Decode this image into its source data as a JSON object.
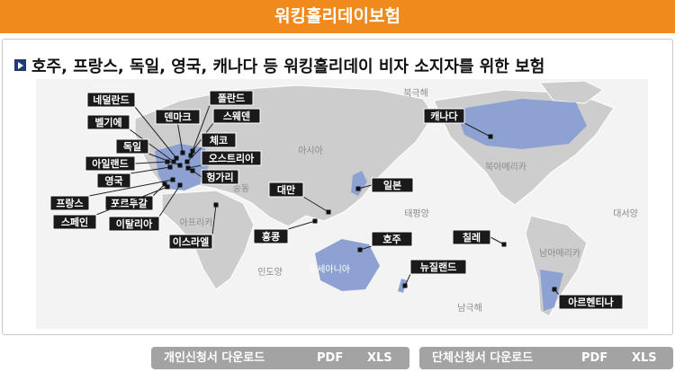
{
  "header": {
    "title": "워킹홀리데이보험"
  },
  "subtitle": "호주, 프랑스, 독일, 영국, 캐나다 등 워킹홀리데이 비자 소지자를 위한 보험",
  "map": {
    "countries": [
      "네덜란드",
      "폴란드",
      "덴마크",
      "스웨덴",
      "벨기에",
      "체코",
      "독일",
      "오스트리아",
      "아일랜드",
      "헝가리",
      "영국",
      "프랑스",
      "포르투갈",
      "스페인",
      "이탈리아",
      "이스라엘",
      "대만",
      "일본",
      "홍콩",
      "호주",
      "뉴질랜드",
      "칠레",
      "아르헨티나",
      "캐나다"
    ],
    "regions": [
      "북극해",
      "아시아",
      "북아메리카",
      "태평양",
      "대서양",
      "아프리카",
      "중동",
      "인도양",
      "오세아니아",
      "남아메리카",
      "남극해"
    ]
  },
  "buttons": [
    {
      "title": "개인신청서 다운로드",
      "pdf": "PDF",
      "xls": "XLS"
    },
    {
      "title": "단체신청서 다운로드",
      "pdf": "PDF",
      "xls": "XLS"
    }
  ]
}
